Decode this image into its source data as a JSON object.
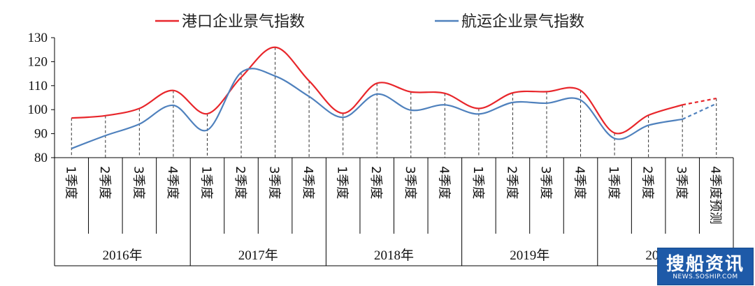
{
  "chart_data": {
    "type": "line",
    "ylim": [
      80,
      130
    ],
    "yticks": [
      80,
      90,
      100,
      110,
      120,
      130
    ],
    "categories": [
      "1季度",
      "2季度",
      "3季度",
      "4季度",
      "1季度",
      "2季度",
      "3季度",
      "4季度",
      "1季度",
      "2季度",
      "3季度",
      "4季度",
      "1季度",
      "2季度",
      "3季度",
      "4季度",
      "1季度",
      "2季度",
      "3季度",
      "4季度预测"
    ],
    "years": [
      "2016年",
      "2017年",
      "2018年",
      "2019年",
      "2020年"
    ],
    "series": [
      {
        "name": "港口企业景气指数",
        "color": "#e8262b",
        "values": [
          96.5,
          97.5,
          100.5,
          108,
          98.3,
          113.5,
          126,
          112,
          98.5,
          111,
          107.4,
          106.8,
          100.5,
          107,
          107.5,
          108,
          90.3,
          97.7,
          102,
          104.7
        ],
        "forecast_from_index": 18
      },
      {
        "name": "航运企业景气指数",
        "color": "#4f81bd",
        "values": [
          83.8,
          89.2,
          94,
          101.8,
          91.5,
          115.5,
          114,
          105.5,
          96.8,
          106.5,
          99.8,
          102,
          98.2,
          103,
          102.7,
          104,
          88,
          93.5,
          96,
          102.5
        ],
        "forecast_from_index": 18
      }
    ]
  },
  "watermark": {
    "main": "搜船资讯",
    "sub": "NEWS.SOSHIP.COM"
  }
}
